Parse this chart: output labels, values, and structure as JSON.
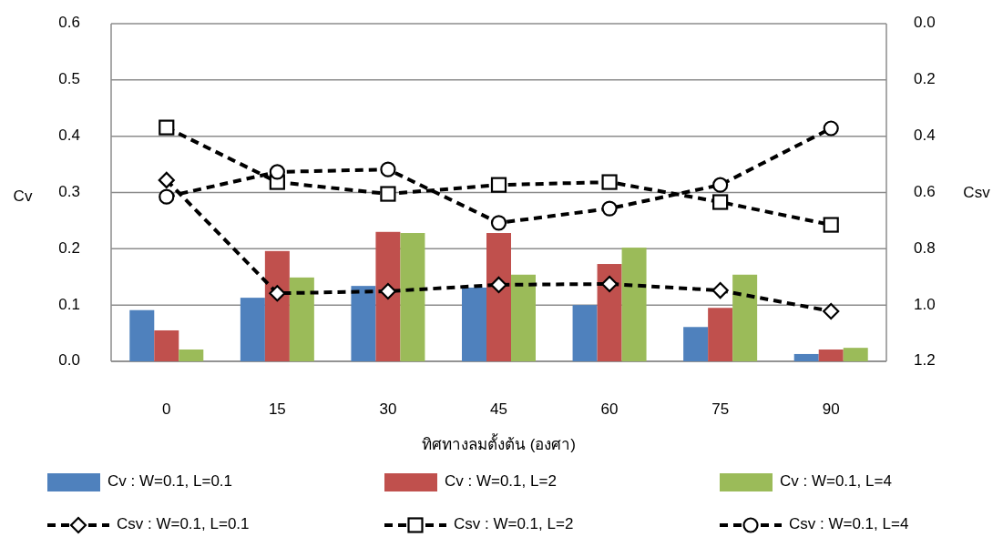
{
  "chart_data": {
    "type": "bar",
    "xlabel": "ทิศทางลมตั้งต้น (องศา)",
    "ylabel": "Cv",
    "y2label": "Csv",
    "categories": [
      "0",
      "15",
      "30",
      "45",
      "60",
      "75",
      "90"
    ],
    "series": [
      {
        "name": "Cv : W=0.1, L=0.1",
        "color": "#4f81bd",
        "values": [
          0.091,
          0.113,
          0.134,
          0.131,
          0.1,
          0.061,
          0.013
        ]
      },
      {
        "name": "Cv : W=0.1, L=2",
        "color": "#c0504d",
        "values": [
          0.055,
          0.196,
          0.23,
          0.228,
          0.173,
          0.095,
          0.021
        ]
      },
      {
        "name": "Cv : W=0.1, L=4",
        "color": "#9bbb59",
        "values": [
          0.021,
          0.149,
          0.228,
          0.154,
          0.202,
          0.154,
          0.024
        ]
      },
      {
        "name": "Csv : W=0.1, L=0.1",
        "type": "line",
        "axis": "y2",
        "color": "#000000",
        "marker": "diamond",
        "line_style": "dashed",
        "values": [
          0.556,
          0.958,
          0.951,
          0.928,
          0.925,
          0.948,
          1.022
        ]
      },
      {
        "name": "Csv : W=0.1, L=2",
        "type": "line",
        "axis": "y2",
        "color": "#000000",
        "marker": "square",
        "line_style": "dashed",
        "values": [
          0.369,
          0.563,
          0.605,
          0.573,
          0.563,
          0.634,
          0.715
        ]
      },
      {
        "name": "Csv : W=0.1, L=4",
        "type": "line",
        "axis": "y2",
        "color": "#000000",
        "marker": "circle",
        "line_style": "dashed",
        "values": [
          0.615,
          0.527,
          0.518,
          0.708,
          0.657,
          0.573,
          0.372
        ]
      }
    ],
    "ylim": [
      0,
      0.6
    ],
    "yticks": [
      {
        "value": 0,
        "label": "0.0"
      },
      0.1,
      0.2,
      0.3,
      0.4,
      0.5,
      0.6
    ],
    "y2lim": [
      1.2,
      0
    ],
    "y2ticks": [
      {
        "value": 0,
        "label": "0.0"
      },
      0.2,
      0.4,
      0.6,
      0.8,
      {
        "value": 1,
        "label": "1.0"
      },
      1.2
    ],
    "grid": "y",
    "legend": "bottom"
  }
}
